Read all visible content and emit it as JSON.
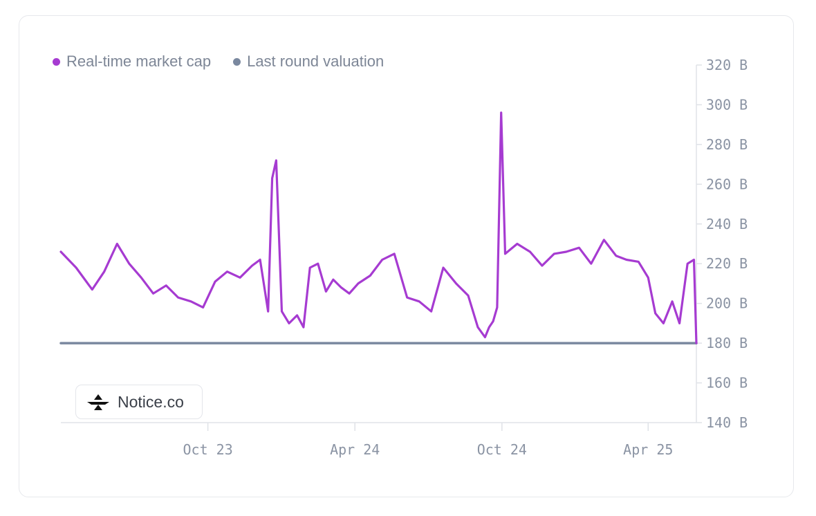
{
  "colors": {
    "market_cap": "#a63bd1",
    "last_round": "#7a889f"
  },
  "legend": [
    {
      "label": "Real-time market cap",
      "color": "#a63bd1"
    },
    {
      "label": "Last round valuation",
      "color": "#7a889f"
    }
  ],
  "badge": {
    "label": "Notice.co",
    "icon": "notice-logo-icon"
  },
  "chart_data": {
    "type": "line",
    "x_ticks": [
      "Oct 23",
      "Apr 24",
      "Oct 24",
      "Apr 25"
    ],
    "y_ticks": [
      "320 B",
      "300 B",
      "280 B",
      "260 B",
      "240 B",
      "220 B",
      "200 B",
      "180 B",
      "160 B",
      "140 B"
    ],
    "ylim": [
      140,
      320
    ],
    "xlim": [
      "2023-04-01",
      "2025-05-31"
    ],
    "y_axis_position": "right",
    "legend_position": "top-left",
    "grid": false,
    "series": [
      {
        "name": "Real-time market cap",
        "color": "#a63bd1",
        "x": [
          "2023-04-01",
          "2023-04-20",
          "2023-05-10",
          "2023-05-25",
          "2023-06-10",
          "2023-06-25",
          "2023-07-10",
          "2023-07-25",
          "2023-08-10",
          "2023-08-25",
          "2023-09-10",
          "2023-09-25",
          "2023-10-10",
          "2023-10-25",
          "2023-11-10",
          "2023-11-25",
          "2023-12-05",
          "2023-12-15",
          "2023-12-20",
          "2023-12-25",
          "2024-01-01",
          "2024-01-10",
          "2024-01-20",
          "2024-01-28",
          "2024-02-05",
          "2024-02-15",
          "2024-02-25",
          "2024-03-05",
          "2024-03-15",
          "2024-03-25",
          "2024-04-05",
          "2024-04-20",
          "2024-05-05",
          "2024-05-20",
          "2024-06-05",
          "2024-06-20",
          "2024-07-05",
          "2024-07-20",
          "2024-08-05",
          "2024-08-20",
          "2024-09-01",
          "2024-09-10",
          "2024-09-15",
          "2024-09-20",
          "2024-09-25",
          "2024-09-30",
          "2024-10-05",
          "2024-10-20",
          "2024-11-05",
          "2024-11-20",
          "2024-12-05",
          "2024-12-20",
          "2025-01-05",
          "2025-01-20",
          "2025-02-05",
          "2025-02-20",
          "2025-03-05",
          "2025-03-20",
          "2025-04-01",
          "2025-04-10",
          "2025-04-20",
          "2025-05-01",
          "2025-05-10",
          "2025-05-20",
          "2025-05-28",
          "2025-05-31"
        ],
        "values": [
          226,
          218,
          207,
          216,
          230,
          220,
          213,
          205,
          209,
          203,
          201,
          198,
          211,
          216,
          213,
          219,
          222,
          196,
          263,
          272,
          196,
          190,
          194,
          188,
          218,
          220,
          206,
          212,
          208,
          205,
          210,
          214,
          222,
          225,
          203,
          201,
          196,
          218,
          210,
          204,
          188,
          183,
          188,
          191,
          198,
          296,
          225,
          230,
          226,
          219,
          225,
          226,
          228,
          220,
          232,
          224,
          222,
          221,
          213,
          195,
          190,
          201,
          190,
          220,
          222,
          180
        ]
      },
      {
        "name": "Last round valuation",
        "color": "#7a889f",
        "x": [
          "2023-04-01",
          "2025-05-31"
        ],
        "values": [
          180,
          180
        ]
      }
    ]
  }
}
